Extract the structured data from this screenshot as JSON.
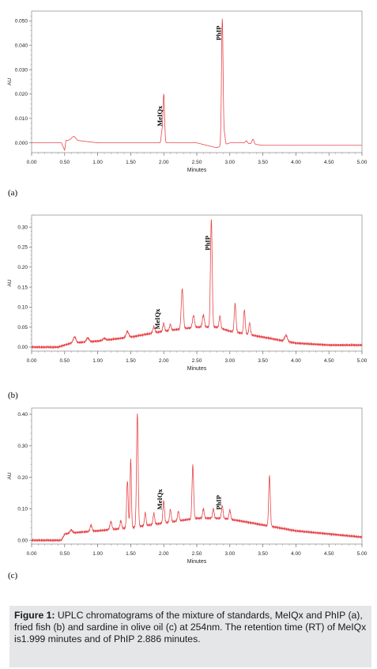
{
  "chart_data": [
    {
      "type": "line",
      "panel_label": "(a)",
      "xlabel": "Minutes",
      "ylabel": "AU",
      "xlim": [
        0,
        5
      ],
      "ylim": [
        -0.004,
        0.054
      ],
      "x_ticks": [
        "0.00",
        "0.50",
        "1.00",
        "1.50",
        "2.00",
        "2.50",
        "3.00",
        "3.50",
        "4.00",
        "4.50",
        "5.00"
      ],
      "y_ticks": [
        {
          "v": 0.0,
          "label": "0.000"
        },
        {
          "v": 0.01,
          "label": "0.010"
        },
        {
          "v": 0.02,
          "label": "0.020"
        },
        {
          "v": 0.03,
          "label": "0.030"
        },
        {
          "v": 0.04,
          "label": "0.040"
        },
        {
          "v": 0.05,
          "label": "0.050"
        }
      ],
      "series": [
        {
          "color": "#e8464a",
          "baseline": [
            [
              0,
              0.0
            ],
            [
              0.45,
              0.0
            ],
            [
              0.5,
              -0.003
            ],
            [
              0.52,
              0.001
            ],
            [
              0.6,
              0.001
            ],
            [
              0.65,
              0.002
            ],
            [
              0.7,
              0.001
            ],
            [
              1.0,
              0.0
            ],
            [
              1.5,
              0.0
            ],
            [
              1.9,
              0.0
            ],
            [
              2.5,
              0.0
            ],
            [
              2.8,
              -0.002
            ],
            [
              3.0,
              0.0
            ],
            [
              3.2,
              0.0
            ],
            [
              3.5,
              -0.001
            ],
            [
              4.0,
              -0.001
            ],
            [
              5.0,
              -0.001
            ]
          ],
          "peaks": [
            {
              "rt": 2.0,
              "h": 0.02,
              "w": 0.012
            },
            {
              "rt": 1.97,
              "h": 0.004,
              "w": 0.01
            },
            {
              "rt": 2.886,
              "h": 0.052,
              "w": 0.012
            },
            {
              "rt": 2.92,
              "h": 0.004,
              "w": 0.01
            },
            {
              "rt": 3.25,
              "h": 0.001,
              "w": 0.015
            },
            {
              "rt": 3.35,
              "h": 0.002,
              "w": 0.015
            },
            {
              "rt": 0.62,
              "h": 0.001,
              "w": 0.03
            }
          ]
        }
      ],
      "annotations": [
        {
          "text": "MeIQx",
          "x": 2.0,
          "y": 0.011
        },
        {
          "text": "PhIP",
          "x": 2.886,
          "y": 0.045
        }
      ]
    },
    {
      "type": "line",
      "panel_label": "(b)",
      "xlabel": "Minutes",
      "ylabel": "AU",
      "xlim": [
        0,
        5
      ],
      "ylim": [
        -0.01,
        0.33
      ],
      "x_ticks": [
        "0.00",
        "0.50",
        "1.00",
        "1.50",
        "2.00",
        "2.50",
        "3.00",
        "3.50",
        "4.00",
        "4.50",
        "5.00"
      ],
      "y_ticks": [
        {
          "v": 0.0,
          "label": "0.00"
        },
        {
          "v": 0.05,
          "label": "0.05"
        },
        {
          "v": 0.1,
          "label": "0.10"
        },
        {
          "v": 0.15,
          "label": "0.15"
        },
        {
          "v": 0.2,
          "label": "0.20"
        },
        {
          "v": 0.25,
          "label": "0.25"
        },
        {
          "v": 0.3,
          "label": "0.30"
        }
      ],
      "series": [
        {
          "color": "#e8464a",
          "baseline": [
            [
              0,
              0.0
            ],
            [
              0.4,
              0.0
            ],
            [
              0.6,
              0.01
            ],
            [
              1.0,
              0.015
            ],
            [
              1.5,
              0.025
            ],
            [
              2.0,
              0.04
            ],
            [
              2.5,
              0.05
            ],
            [
              2.8,
              0.05
            ],
            [
              3.0,
              0.04
            ],
            [
              3.5,
              0.025
            ],
            [
              4.0,
              0.01
            ],
            [
              4.5,
              0.005
            ],
            [
              5.0,
              0.005
            ]
          ],
          "peaks": [
            {
              "rt": 0.65,
              "h": 0.015,
              "w": 0.02
            },
            {
              "rt": 0.85,
              "h": 0.01,
              "w": 0.02
            },
            {
              "rt": 1.1,
              "h": 0.005,
              "w": 0.02
            },
            {
              "rt": 1.45,
              "h": 0.015,
              "w": 0.02
            },
            {
              "rt": 1.85,
              "h": 0.015,
              "w": 0.015
            },
            {
              "rt": 1.999,
              "h": 0.02,
              "w": 0.012
            },
            {
              "rt": 2.1,
              "h": 0.015,
              "w": 0.012
            },
            {
              "rt": 2.28,
              "h": 0.1,
              "w": 0.015
            },
            {
              "rt": 2.45,
              "h": 0.03,
              "w": 0.015
            },
            {
              "rt": 2.6,
              "h": 0.03,
              "w": 0.015
            },
            {
              "rt": 2.72,
              "h": 0.27,
              "w": 0.013
            },
            {
              "rt": 2.85,
              "h": 0.03,
              "w": 0.012
            },
            {
              "rt": 3.08,
              "h": 0.07,
              "w": 0.013
            },
            {
              "rt": 3.22,
              "h": 0.06,
              "w": 0.012
            },
            {
              "rt": 3.3,
              "h": 0.03,
              "w": 0.012
            },
            {
              "rt": 3.85,
              "h": 0.015,
              "w": 0.02
            }
          ]
        }
      ],
      "annotations": [
        {
          "text": "MeIQx",
          "x": 1.96,
          "y": 0.07
        },
        {
          "text": "PhIP",
          "x": 2.72,
          "y": 0.26
        }
      ]
    },
    {
      "type": "line",
      "panel_label": "(c)",
      "xlabel": "Minutes",
      "ylabel": "AU",
      "xlim": [
        0,
        5
      ],
      "ylim": [
        -0.012,
        0.42
      ],
      "x_ticks": [
        "0.00",
        "0.50",
        "1.00",
        "1.50",
        "2.00",
        "2.50",
        "3.00",
        "3.50",
        "4.00",
        "4.50",
        "5.00"
      ],
      "y_ticks": [
        {
          "v": 0.0,
          "label": "0.00"
        },
        {
          "v": 0.1,
          "label": "0.10"
        },
        {
          "v": 0.2,
          "label": "0.20"
        },
        {
          "v": 0.3,
          "label": "0.30"
        },
        {
          "v": 0.4,
          "label": "0.40"
        }
      ],
      "series": [
        {
          "color": "#e8464a",
          "baseline": [
            [
              0,
              0.0
            ],
            [
              0.45,
              0.0
            ],
            [
              0.5,
              0.02
            ],
            [
              0.7,
              0.025
            ],
            [
              1.0,
              0.03
            ],
            [
              1.5,
              0.04
            ],
            [
              2.0,
              0.055
            ],
            [
              2.5,
              0.07
            ],
            [
              2.9,
              0.07
            ],
            [
              3.2,
              0.06
            ],
            [
              3.6,
              0.045
            ],
            [
              4.0,
              0.03
            ],
            [
              4.5,
              0.02
            ],
            [
              5.0,
              0.01
            ]
          ],
          "peaks": [
            {
              "rt": 0.6,
              "h": 0.01,
              "w": 0.02
            },
            {
              "rt": 0.9,
              "h": 0.02,
              "w": 0.015
            },
            {
              "rt": 1.2,
              "h": 0.025,
              "w": 0.015
            },
            {
              "rt": 1.35,
              "h": 0.025,
              "w": 0.012
            },
            {
              "rt": 1.45,
              "h": 0.15,
              "w": 0.012
            },
            {
              "rt": 1.5,
              "h": 0.22,
              "w": 0.01
            },
            {
              "rt": 1.6,
              "h": 0.36,
              "w": 0.012
            },
            {
              "rt": 1.72,
              "h": 0.04,
              "w": 0.012
            },
            {
              "rt": 1.85,
              "h": 0.035,
              "w": 0.012
            },
            {
              "rt": 1.999,
              "h": 0.07,
              "w": 0.012
            },
            {
              "rt": 2.1,
              "h": 0.04,
              "w": 0.012
            },
            {
              "rt": 2.22,
              "h": 0.03,
              "w": 0.012
            },
            {
              "rt": 2.44,
              "h": 0.17,
              "w": 0.012
            },
            {
              "rt": 2.6,
              "h": 0.03,
              "w": 0.012
            },
            {
              "rt": 2.75,
              "h": 0.03,
              "w": 0.012
            },
            {
              "rt": 2.886,
              "h": 0.04,
              "w": 0.012
            },
            {
              "rt": 3.0,
              "h": 0.03,
              "w": 0.012
            },
            {
              "rt": 3.6,
              "h": 0.16,
              "w": 0.012
            }
          ]
        }
      ],
      "annotations": [
        {
          "text": "MeIQx",
          "x": 1.999,
          "y": 0.13
        },
        {
          "text": "PhIP",
          "x": 2.886,
          "y": 0.12
        }
      ]
    }
  ],
  "caption": {
    "figure_label": "Figure 1:",
    "text": " UPLC chromatograms of the mixture of standards, MeIQx and PhIP (a), fried fish (b) and sardine in olive oil (c) at 254nm. The retention time (RT) of MeIQx is1.999 minutes and of PhIP 2.886 minutes."
  }
}
